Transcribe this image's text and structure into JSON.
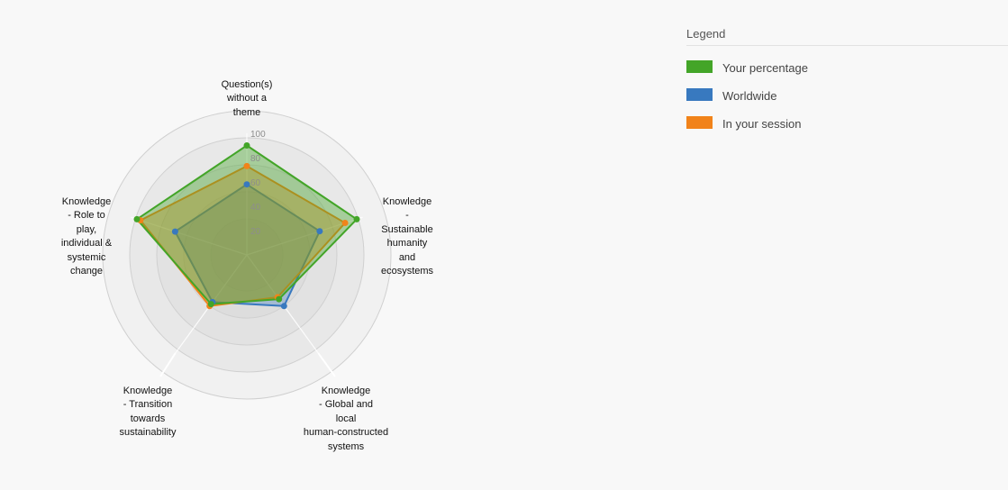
{
  "chart_data": {
    "type": "radar",
    "axes": [
      "Question(s) without a theme",
      "Knowledge - Sustainable humanity and ecosystems",
      "Knowledge - Global and local human-constructed systems",
      "Knowledge - Transition towards sustainability",
      "Knowledge - Role to play, individual & systemic change"
    ],
    "radial_ticks": [
      "20",
      "40",
      "60",
      "80",
      "100"
    ],
    "r_range": [
      0,
      100
    ],
    "series": [
      {
        "name": "Your percentage",
        "color": "#43a528",
        "values": [
          90,
          95,
          45,
          50,
          95
        ]
      },
      {
        "name": "Worldwide",
        "color": "#3879bf",
        "values": [
          58,
          63,
          52,
          48,
          62
        ]
      },
      {
        "name": "In your session",
        "color": "#f1831a",
        "values": [
          73,
          85,
          43,
          52,
          92
        ]
      }
    ]
  },
  "legend": {
    "title": "Legend",
    "items": [
      {
        "label": "Your percentage",
        "color": "#43a528"
      },
      {
        "label": "Worldwide",
        "color": "#3879bf"
      },
      {
        "label": "In your session",
        "color": "#f1831a"
      }
    ]
  },
  "labels": {
    "axis0": [
      "Question(s)",
      "without a",
      "theme"
    ],
    "axis1": [
      "Knowledge",
      "-",
      "Sustainable",
      "humanity",
      "and",
      "ecosystems"
    ],
    "axis2": [
      "Knowledge",
      "- Global and",
      "local",
      "human-constructed",
      "systems"
    ],
    "axis3": [
      "Knowledge",
      "- Transition",
      "towards",
      "sustainability"
    ],
    "axis4": [
      "Knowledge",
      "- Role to",
      "play,",
      "individual &",
      "systemic",
      "change"
    ]
  }
}
